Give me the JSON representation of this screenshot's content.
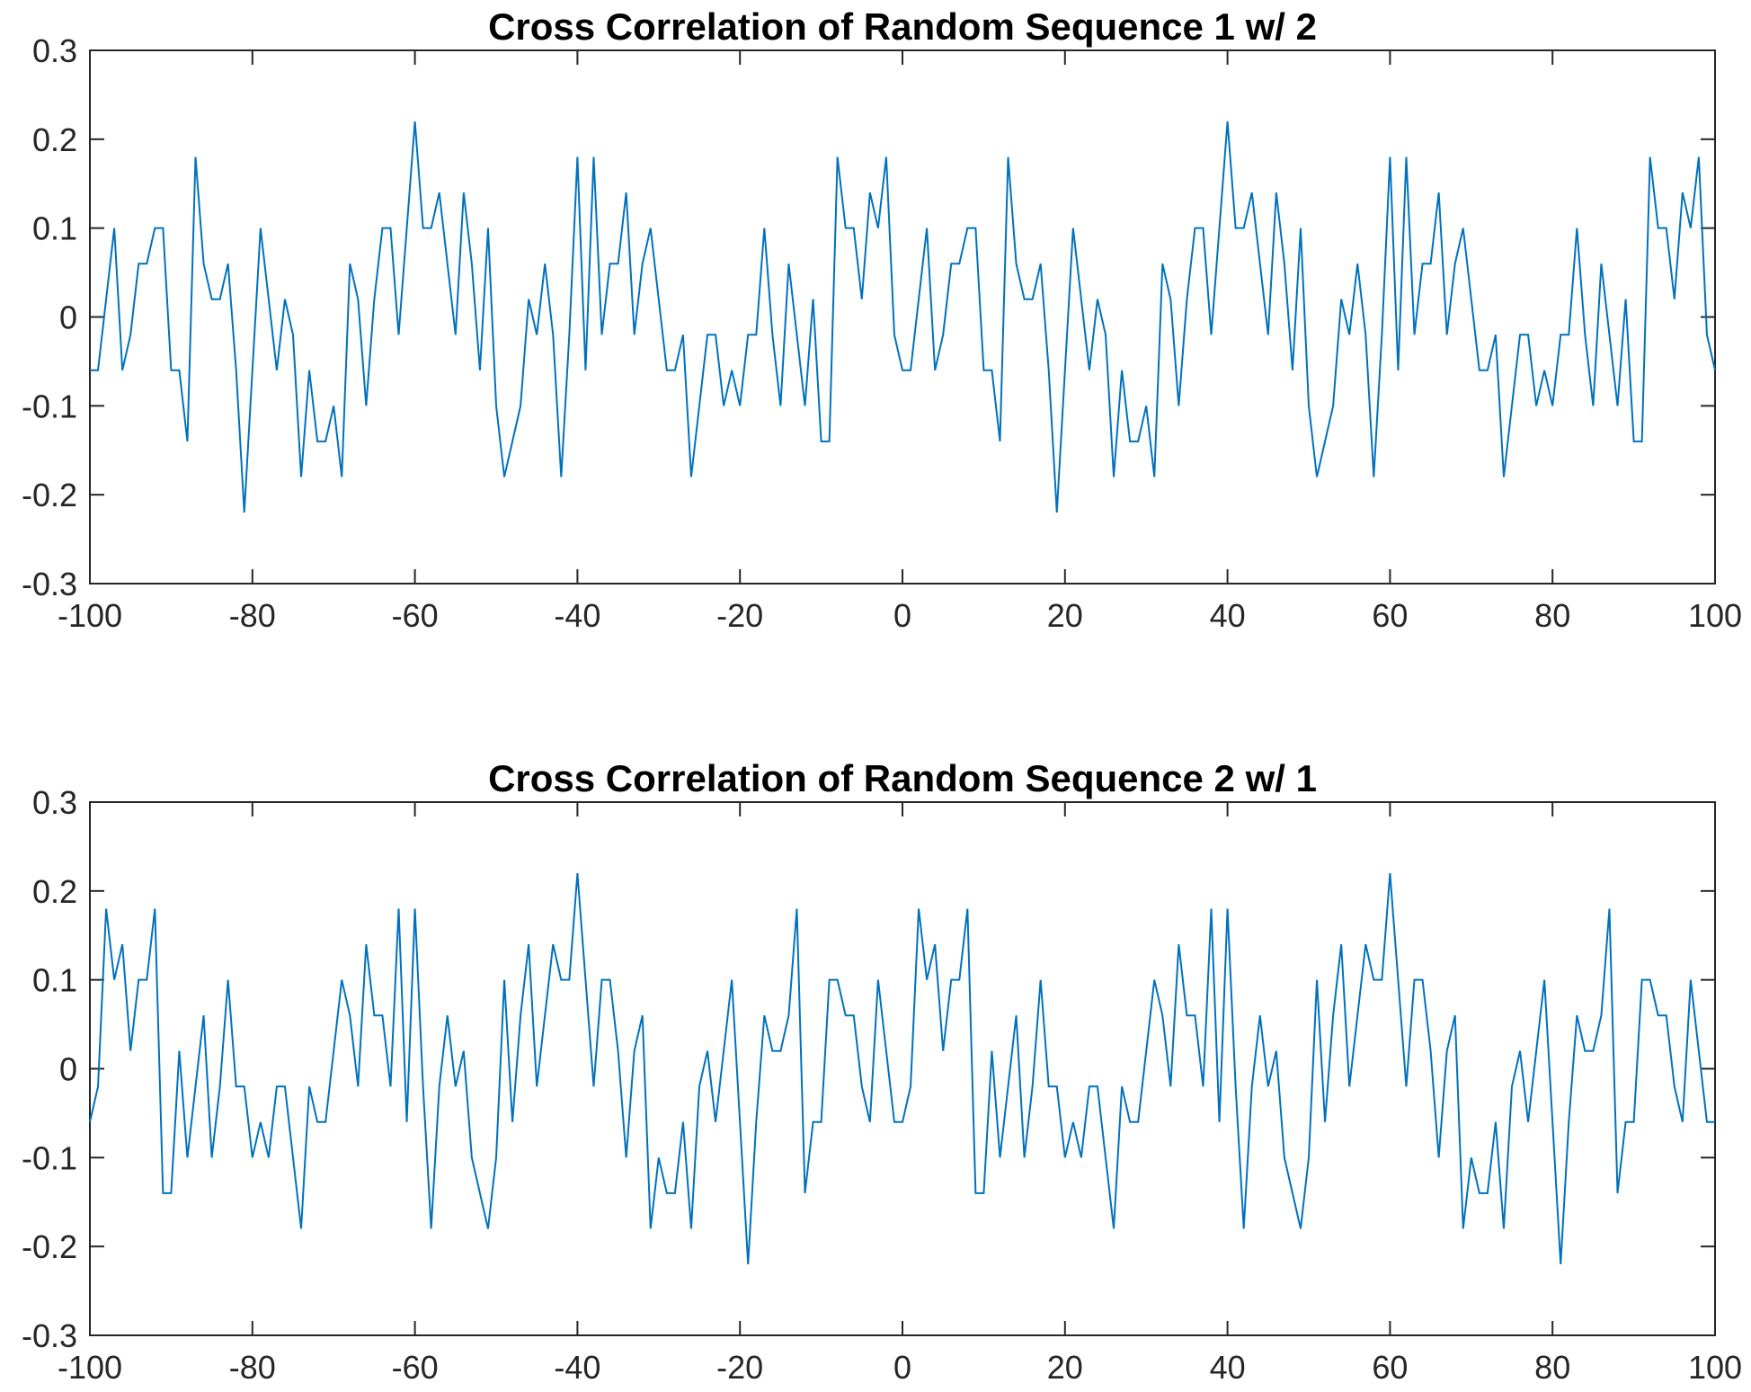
{
  "chart_data": [
    {
      "type": "line",
      "title": "Cross Correlation of Random Sequence 1 w/ 2",
      "xlabel": "",
      "ylabel": "",
      "xlim": [
        -100,
        100
      ],
      "ylim": [
        -0.3,
        0.3
      ],
      "xticks": [
        -100,
        -80,
        -60,
        -40,
        -20,
        0,
        20,
        40,
        60,
        80,
        100
      ],
      "xtick_labels": [
        "-100",
        "-80",
        "-60",
        "-40",
        "-20",
        "0",
        "20",
        "40",
        "60",
        "80",
        "100"
      ],
      "yticks": [
        -0.3,
        -0.2,
        -0.1,
        0,
        0.1,
        0.2,
        0.3
      ],
      "ytick_labels": [
        "-0.3",
        "-0.2",
        "-0.1",
        "0",
        "0.1",
        "0.2",
        "0.3"
      ],
      "grid": false,
      "line_color": "#0072BD",
      "x_start": -100,
      "x_step": 1,
      "series": [
        {
          "values": [
            -0.06,
            -0.06,
            0.02,
            0.1,
            -0.06,
            -0.02,
            0.06,
            0.06,
            0.1,
            0.1,
            -0.06,
            -0.06,
            -0.14,
            0.18,
            0.06,
            0.02,
            0.02,
            0.06,
            -0.06,
            -0.22,
            -0.06,
            0.1,
            0.02,
            -0.06,
            0.02,
            -0.02,
            -0.18,
            -0.06,
            -0.14,
            -0.14,
            -0.1,
            -0.18,
            0.06,
            0.02,
            -0.1,
            0.02,
            0.1,
            0.1,
            -0.02,
            0.1,
            0.22,
            0.1,
            0.1,
            0.14,
            0.06,
            -0.02,
            0.14,
            0.06,
            -0.06,
            0.1,
            -0.1,
            -0.18,
            -0.14,
            -0.1,
            0.02,
            -0.02,
            0.06,
            -0.02,
            -0.18,
            -0.02,
            0.18,
            -0.06,
            0.18,
            -0.02,
            0.06,
            0.06,
            0.14,
            -0.02,
            0.06,
            0.1,
            0.02,
            -0.06,
            -0.06,
            -0.02,
            -0.18,
            -0.1,
            -0.02,
            -0.02,
            -0.1,
            -0.06,
            -0.1,
            -0.02,
            -0.02,
            0.1,
            -0.02,
            -0.1,
            0.06,
            -0.02,
            -0.1,
            0.02,
            -0.14,
            -0.14,
            0.18,
            0.1,
            0.1,
            0.02,
            0.14,
            0.1,
            0.18,
            -0.02,
            -0.06,
            -0.06,
            0.02,
            0.1,
            -0.06,
            -0.02,
            0.06,
            0.06,
            0.1,
            0.1,
            -0.06,
            -0.06,
            -0.14,
            0.18,
            0.06,
            0.02,
            0.02,
            0.06,
            -0.06,
            -0.22,
            -0.06,
            0.1,
            0.02,
            -0.06,
            0.02,
            -0.02,
            -0.18,
            -0.06,
            -0.14,
            -0.14,
            -0.1,
            -0.18,
            0.06,
            0.02,
            -0.1,
            0.02,
            0.1,
            0.1,
            -0.02,
            0.1,
            0.22,
            0.1,
            0.1,
            0.14,
            0.06,
            -0.02,
            0.14,
            0.06,
            -0.06,
            0.1,
            -0.1,
            -0.18,
            -0.14,
            -0.1,
            0.02,
            -0.02,
            0.06,
            -0.02,
            -0.18,
            -0.02,
            0.18,
            -0.06,
            0.18,
            -0.02,
            0.06,
            0.06,
            0.14,
            -0.02,
            0.06,
            0.1,
            0.02,
            -0.06,
            -0.06,
            -0.02,
            -0.18,
            -0.1,
            -0.02,
            -0.02,
            -0.1,
            -0.06,
            -0.1,
            -0.02,
            -0.02,
            0.1,
            -0.02,
            -0.1,
            0.06,
            -0.02,
            -0.1,
            0.02,
            -0.14,
            -0.14,
            0.18,
            0.1,
            0.1,
            0.02,
            0.14,
            0.1,
            0.18,
            -0.02,
            -0.06
          ]
        }
      ]
    },
    {
      "type": "line",
      "title": "Cross Correlation of Random Sequence 2 w/ 1",
      "xlabel": "",
      "ylabel": "",
      "xlim": [
        -100,
        100
      ],
      "ylim": [
        -0.3,
        0.3
      ],
      "xticks": [
        -100,
        -80,
        -60,
        -40,
        -20,
        0,
        20,
        40,
        60,
        80,
        100
      ],
      "xtick_labels": [
        "-100",
        "-80",
        "-60",
        "-40",
        "-20",
        "0",
        "20",
        "40",
        "60",
        "80",
        "100"
      ],
      "yticks": [
        -0.3,
        -0.2,
        -0.1,
        0,
        0.1,
        0.2,
        0.3
      ],
      "ytick_labels": [
        "-0.3",
        "-0.2",
        "-0.1",
        "0",
        "0.1",
        "0.2",
        "0.3"
      ],
      "grid": false,
      "line_color": "#0072BD",
      "x_start": -100,
      "x_step": 1,
      "series": [
        {
          "values": [
            -0.06,
            -0.02,
            0.18,
            0.1,
            0.14,
            0.02,
            0.1,
            0.1,
            0.18,
            -0.14,
            -0.14,
            0.02,
            -0.1,
            -0.02,
            0.06,
            -0.1,
            -0.02,
            0.1,
            -0.02,
            -0.02,
            -0.1,
            -0.06,
            -0.1,
            -0.02,
            -0.02,
            -0.1,
            -0.18,
            -0.02,
            -0.06,
            -0.06,
            0.02,
            0.1,
            0.06,
            -0.02,
            0.14,
            0.06,
            0.06,
            -0.02,
            0.18,
            -0.06,
            0.18,
            -0.02,
            -0.18,
            -0.02,
            0.06,
            -0.02,
            0.02,
            -0.1,
            -0.14,
            -0.18,
            -0.1,
            0.1,
            -0.06,
            0.06,
            0.14,
            -0.02,
            0.06,
            0.14,
            0.1,
            0.1,
            0.22,
            0.1,
            -0.02,
            0.1,
            0.1,
            0.02,
            -0.1,
            0.02,
            0.06,
            -0.18,
            -0.1,
            -0.14,
            -0.14,
            -0.06,
            -0.18,
            -0.02,
            0.02,
            -0.06,
            0.02,
            0.1,
            -0.06,
            -0.22,
            -0.06,
            0.06,
            0.02,
            0.02,
            0.06,
            0.18,
            -0.14,
            -0.06,
            -0.06,
            0.1,
            0.1,
            0.06,
            0.06,
            -0.02,
            -0.06,
            0.1,
            0.02,
            -0.06,
            -0.06,
            -0.02,
            0.18,
            0.1,
            0.14,
            0.02,
            0.1,
            0.1,
            0.18,
            -0.14,
            -0.14,
            0.02,
            -0.1,
            -0.02,
            0.06,
            -0.1,
            -0.02,
            0.1,
            -0.02,
            -0.02,
            -0.1,
            -0.06,
            -0.1,
            -0.02,
            -0.02,
            -0.1,
            -0.18,
            -0.02,
            -0.06,
            -0.06,
            0.02,
            0.1,
            0.06,
            -0.02,
            0.14,
            0.06,
            0.06,
            -0.02,
            0.18,
            -0.06,
            0.18,
            -0.02,
            -0.18,
            -0.02,
            0.06,
            -0.02,
            0.02,
            -0.1,
            -0.14,
            -0.18,
            -0.1,
            0.1,
            -0.06,
            0.06,
            0.14,
            -0.02,
            0.06,
            0.14,
            0.1,
            0.1,
            0.22,
            0.1,
            -0.02,
            0.1,
            0.1,
            0.02,
            -0.1,
            0.02,
            0.06,
            -0.18,
            -0.1,
            -0.14,
            -0.14,
            -0.06,
            -0.18,
            -0.02,
            0.02,
            -0.06,
            0.02,
            0.1,
            -0.06,
            -0.22,
            -0.06,
            0.06,
            0.02,
            0.02,
            0.06,
            0.18,
            -0.14,
            -0.06,
            -0.06,
            0.1,
            0.1,
            0.06,
            0.06,
            -0.02,
            -0.06,
            0.1,
            0.02,
            -0.06,
            -0.06
          ]
        }
      ]
    }
  ]
}
